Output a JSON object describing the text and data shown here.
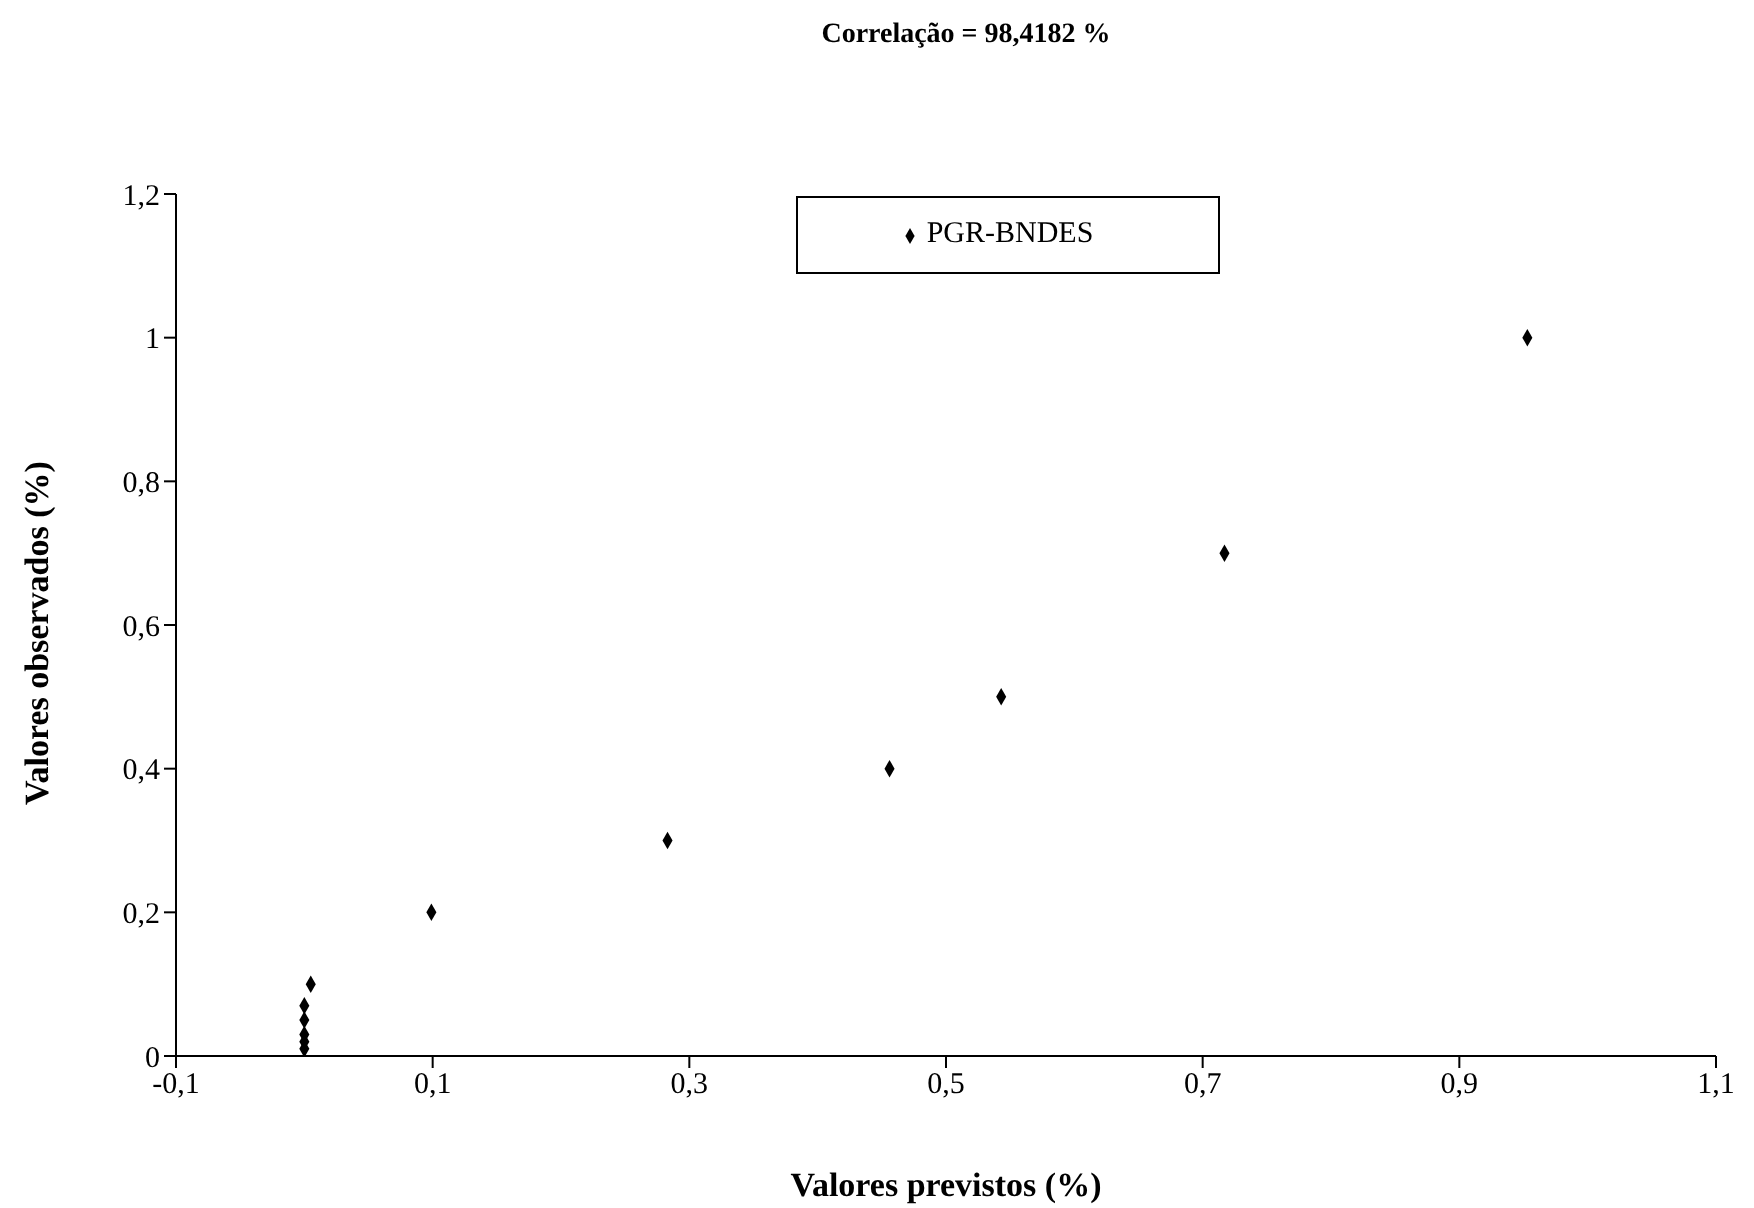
{
  "chart_data": {
    "type": "scatter",
    "title": "Correlação = 98,4182 %",
    "xlabel": "Valores previstos (%)",
    "ylabel": "Valores observados (%)",
    "series": [
      {
        "name": "PGR-BNDES",
        "color": "#000000",
        "x": [
          0.0,
          0.0,
          0.0,
          0.0,
          0.0,
          0.005,
          0.099,
          0.283,
          0.456,
          0.543,
          0.717,
          0.953
        ],
        "values": [
          0.01,
          0.02,
          0.03,
          0.05,
          0.07,
          0.1,
          0.2,
          0.3,
          0.4,
          0.5,
          0.7,
          1.0
        ]
      }
    ],
    "xlim": [
      -0.1,
      1.1
    ],
    "xticks": [
      {
        "value": -0.1,
        "label": "-0,1"
      },
      {
        "value": 0.1,
        "label": "0,1"
      },
      {
        "value": 0.3,
        "label": "0,3"
      },
      {
        "value": 0.5,
        "label": "0,5"
      },
      {
        "value": 0.7,
        "label": "0,7"
      },
      {
        "value": 0.9,
        "label": "0,9"
      },
      {
        "value": 1.1,
        "label": "1,1"
      }
    ],
    "ylim": [
      0,
      1.2
    ],
    "yticks": [
      0,
      {
        "value": 0.2,
        "label": "0,2"
      },
      {
        "value": 0.4,
        "label": "0,4"
      },
      {
        "value": 0.6,
        "label": "0,6"
      },
      {
        "value": 0.8,
        "label": "0,8"
      },
      1,
      {
        "value": 1.2,
        "label": "1,2"
      }
    ],
    "marker": "diamond",
    "legend": "top",
    "grid": false
  }
}
